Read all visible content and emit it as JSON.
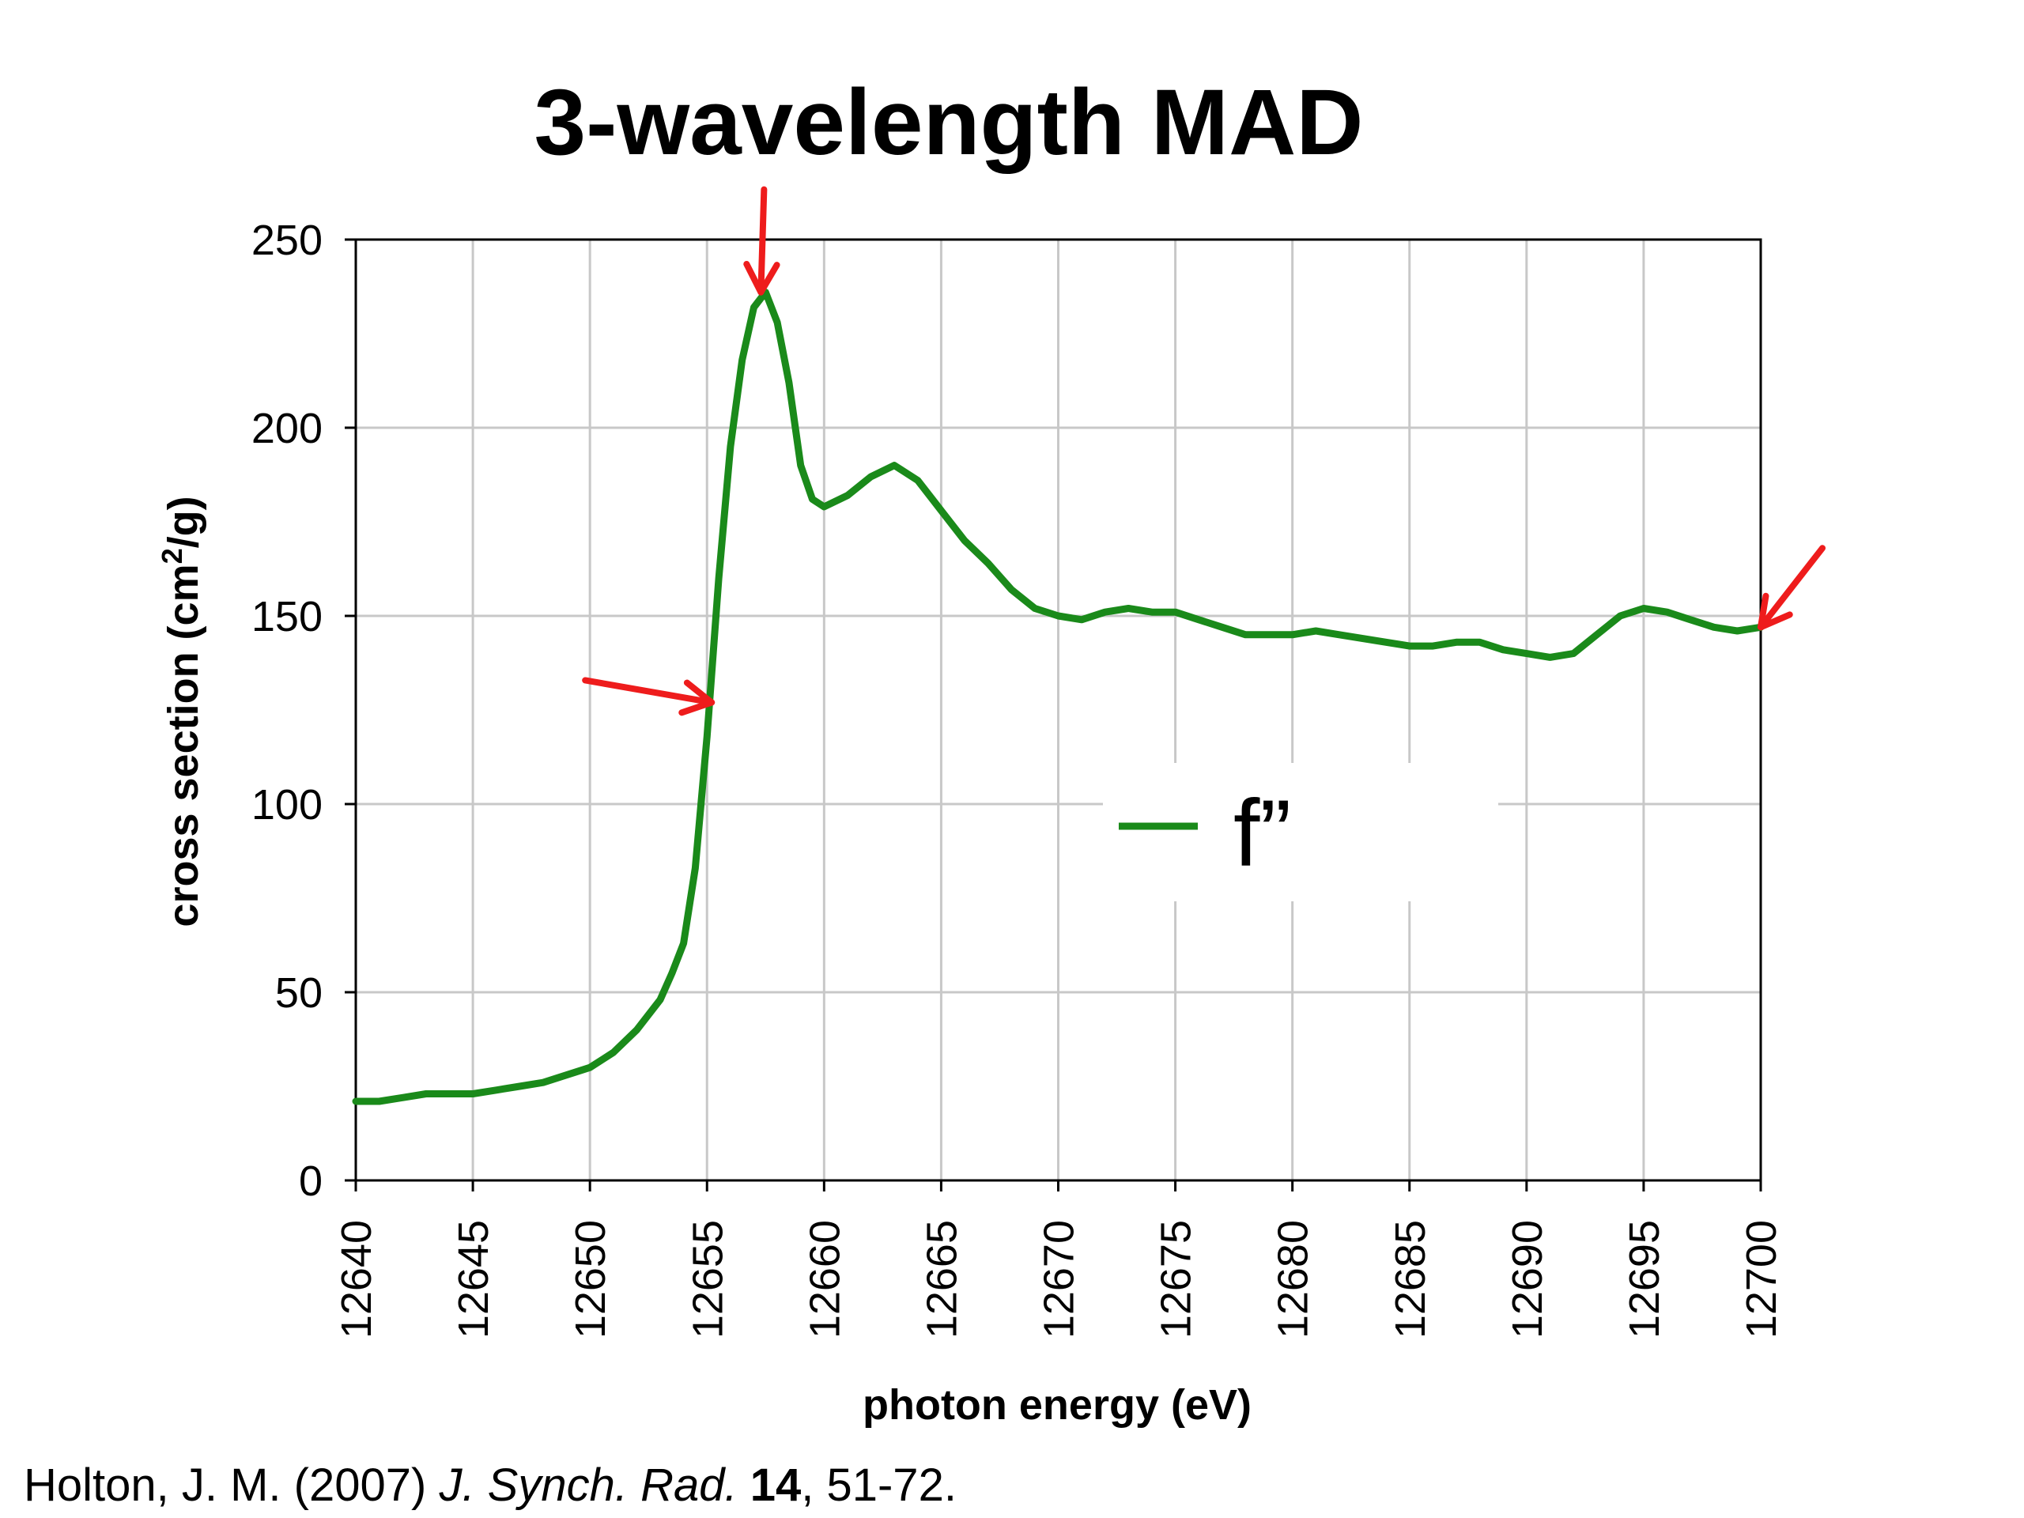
{
  "colors": {
    "series": "#1a8a1a",
    "arrow": "#ee1c1c",
    "grid": "#c8c8c8",
    "axis": "#000000",
    "text": "#000000"
  },
  "citation": {
    "authors": "Holton, J. M. (2007) ",
    "journal": "J. Synch. Rad.",
    "volume": "14",
    "pages": ", 51-72."
  },
  "chart_data": {
    "type": "line",
    "title": "3-wavelength MAD",
    "xlabel": "photon energy (eV)",
    "ylabel_main": "cross section (cm",
    "ylabel_sup": "2",
    "ylabel_tail": "/g)",
    "xlim": [
      12640,
      12700
    ],
    "ylim": [
      0,
      250
    ],
    "xticks": [
      "12640",
      "12645",
      "12650",
      "12655",
      "12660",
      "12665",
      "12670",
      "12675",
      "12680",
      "12685",
      "12690",
      "12695",
      "12700"
    ],
    "yticks": [
      "0",
      "50",
      "100",
      "150",
      "200",
      "250"
    ],
    "grid": true,
    "legend": {
      "position": "center-right",
      "entries": [
        "f”"
      ]
    },
    "markers": [
      {
        "x": 12655.2,
        "y": 127,
        "direction": "from-left"
      },
      {
        "x": 12657.3,
        "y": 236,
        "direction": "from-above"
      },
      {
        "x": 12700,
        "y": 147,
        "direction": "from-upper-right"
      }
    ],
    "series": [
      {
        "name": "f”",
        "x": [
          12640,
          12641,
          12642,
          12643,
          12644,
          12645,
          12646,
          12647,
          12648,
          12649,
          12650,
          12651,
          12652,
          12653,
          12653.5,
          12654,
          12654.5,
          12655,
          12655.5,
          12656,
          12656.5,
          12657,
          12657.5,
          12658,
          12658.5,
          12659,
          12659.5,
          12660,
          12661,
          12662,
          12663,
          12664,
          12665,
          12666,
          12667,
          12668,
          12669,
          12670,
          12671,
          12672,
          12673,
          12674,
          12675,
          12676,
          12677,
          12678,
          12679,
          12680,
          12681,
          12682,
          12683,
          12684,
          12685,
          12686,
          12687,
          12688,
          12689,
          12690,
          12691,
          12692,
          12693,
          12694,
          12695,
          12696,
          12697,
          12698,
          12699,
          12700
        ],
        "y": [
          21,
          21,
          22,
          23,
          23,
          23,
          24,
          25,
          26,
          28,
          30,
          34,
          40,
          48,
          55,
          63,
          83,
          118,
          160,
          195,
          218,
          232,
          236,
          228,
          212,
          190,
          181,
          179,
          182,
          187,
          190,
          186,
          178,
          170,
          164,
          157,
          152,
          150,
          149,
          151,
          152,
          151,
          151,
          149,
          147,
          145,
          145,
          145,
          146,
          145,
          144,
          143,
          142,
          142,
          143,
          143,
          141,
          140,
          139,
          140,
          145,
          150,
          152,
          151,
          149,
          147,
          146,
          147
        ]
      }
    ]
  }
}
